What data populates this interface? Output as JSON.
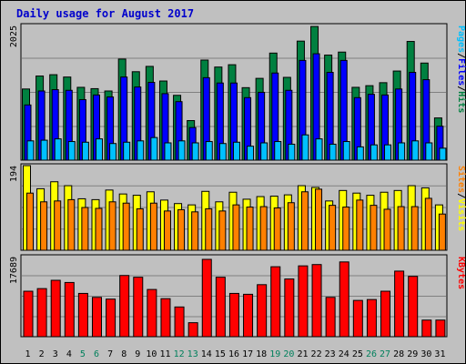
{
  "title": "Daily usage for August 2017",
  "colors": {
    "hits": "#008040",
    "files": "#0000ff",
    "pages": "#00c0ff",
    "visits": "#ffff00",
    "sites": "#ff8000",
    "kbytes": "#ff0000",
    "weekday_label": "#000000",
    "weekend_label": "#00805c",
    "panel_bg": "#c0c0c0",
    "gridline": "#808080"
  },
  "chart_data": [
    {
      "type": "bar",
      "name": "hits-files-pages",
      "categories": [
        "1",
        "2",
        "3",
        "4",
        "5",
        "6",
        "7",
        "8",
        "9",
        "10",
        "11",
        "12",
        "13",
        "14",
        "15",
        "16",
        "17",
        "18",
        "19",
        "20",
        "21",
        "22",
        "23",
        "24",
        "25",
        "26",
        "27",
        "28",
        "29",
        "30",
        "31"
      ],
      "ymax_label": "2025",
      "ylim": [
        0,
        2025
      ],
      "legend": [
        "Pages",
        "/",
        "Files",
        "/",
        "Hits"
      ],
      "series": [
        {
          "name": "Hits",
          "values": [
            1070,
            1265,
            1285,
            1250,
            1095,
            1075,
            1040,
            1520,
            1330,
            1410,
            1190,
            975,
            595,
            1505,
            1400,
            1435,
            1090,
            1230,
            1610,
            1245,
            1790,
            2010,
            1580,
            1625,
            1095,
            1120,
            1165,
            1340,
            1785,
            1460,
            635
          ]
        },
        {
          "name": "Files",
          "values": [
            830,
            1040,
            1060,
            1050,
            910,
            980,
            950,
            1250,
            1100,
            1170,
            1000,
            880,
            490,
            1240,
            1160,
            1160,
            940,
            1020,
            1310,
            1050,
            1500,
            1600,
            1320,
            1500,
            940,
            990,
            980,
            1070,
            1320,
            1210,
            510
          ]
        },
        {
          "name": "Pages",
          "values": [
            290,
            300,
            320,
            280,
            270,
            320,
            250,
            270,
            290,
            340,
            260,
            290,
            260,
            280,
            250,
            270,
            210,
            260,
            280,
            240,
            380,
            320,
            240,
            280,
            200,
            230,
            230,
            260,
            290,
            260,
            180
          ]
        }
      ]
    },
    {
      "type": "bar",
      "name": "visits-sites",
      "categories": [
        "1",
        "2",
        "3",
        "4",
        "5",
        "6",
        "7",
        "8",
        "9",
        "10",
        "11",
        "12",
        "13",
        "14",
        "15",
        "16",
        "17",
        "18",
        "19",
        "20",
        "21",
        "22",
        "23",
        "24",
        "25",
        "26",
        "27",
        "28",
        "29",
        "30",
        "31"
      ],
      "ymax_label": "194",
      "ylim": [
        0,
        194
      ],
      "legend": [
        "Sites",
        "/",
        "Visits"
      ],
      "series": [
        {
          "name": "Visits",
          "values": [
            194,
            141,
            157,
            148,
            118,
            116,
            138,
            129,
            126,
            134,
            115,
            107,
            104,
            135,
            111,
            133,
            117,
            123,
            124,
            127,
            148,
            144,
            113,
            137,
            131,
            126,
            133,
            137,
            148,
            143,
            104
          ]
        },
        {
          "name": "Sites",
          "values": [
            131,
            111,
            113,
            116,
            98,
            96,
            111,
            108,
            95,
            108,
            90,
            93,
            88,
            95,
            90,
            104,
            99,
            100,
            97,
            109,
            134,
            140,
            103,
            99,
            115,
            103,
            94,
            100,
            100,
            119,
            83
          ]
        }
      ]
    },
    {
      "type": "bar",
      "name": "kbytes",
      "categories": [
        "1",
        "2",
        "3",
        "4",
        "5",
        "6",
        "7",
        "8",
        "9",
        "10",
        "11",
        "12",
        "13",
        "14",
        "15",
        "16",
        "17",
        "18",
        "19",
        "20",
        "21",
        "22",
        "23",
        "24",
        "25",
        "26",
        "27",
        "28",
        "29",
        "30",
        "31"
      ],
      "ymax_label": "17689",
      "ylim": [
        0,
        17689
      ],
      "legend": [
        "KBytes"
      ],
      "series": [
        {
          "name": "KBytes",
          "values": [
            10400,
            11000,
            12900,
            12400,
            9900,
            9000,
            8600,
            14000,
            13600,
            10800,
            8700,
            6800,
            3200,
            17689,
            13600,
            9900,
            9700,
            11900,
            16000,
            13200,
            16200,
            16500,
            9000,
            17100,
            8300,
            8500,
            10400,
            15000,
            13800,
            3800,
            3800
          ]
        }
      ]
    }
  ],
  "weekend_days": [
    "5",
    "6",
    "12",
    "13",
    "19",
    "20",
    "26",
    "27"
  ]
}
